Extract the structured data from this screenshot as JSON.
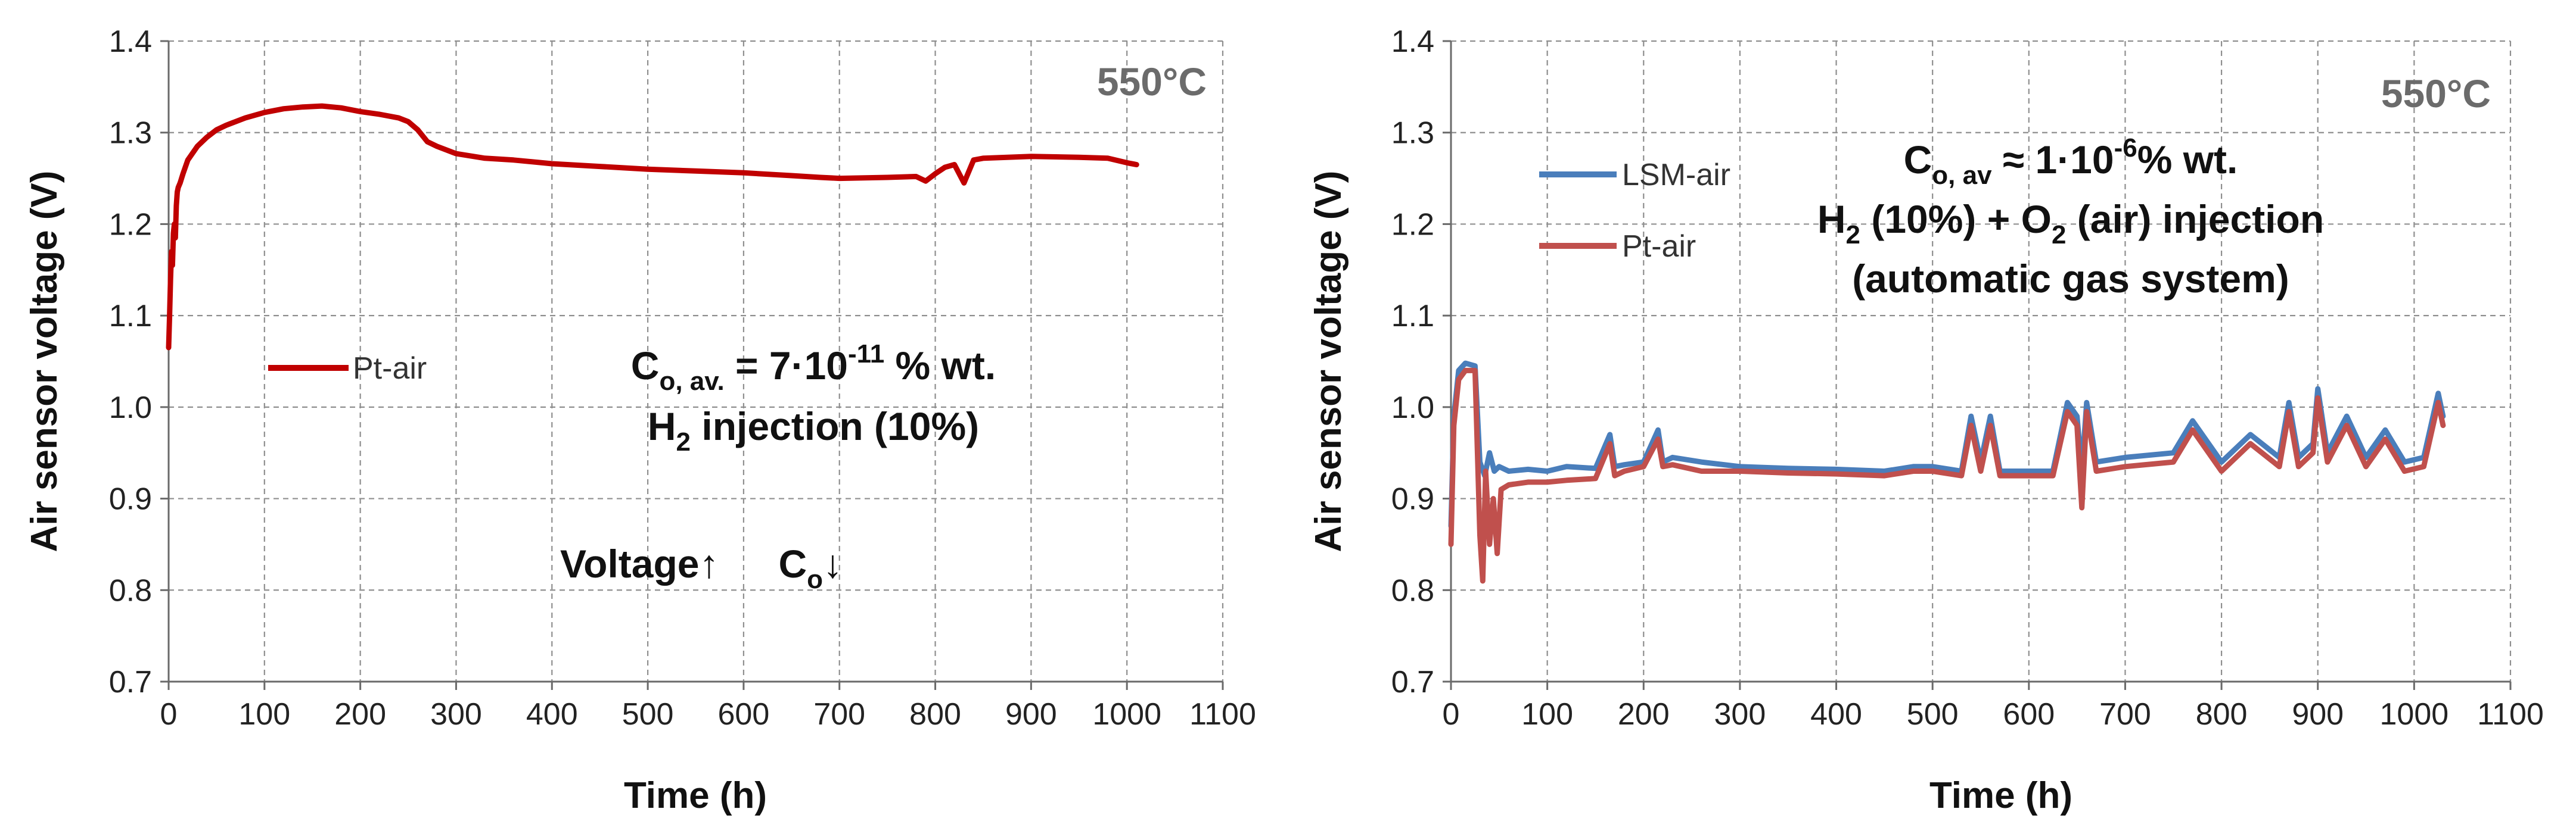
{
  "chart_data": [
    {
      "type": "line",
      "id": "left",
      "xlabel": "Time (h)",
      "ylabel": "Air sensor voltage (V)",
      "xlim": [
        0,
        1100
      ],
      "ylim": [
        0.7,
        1.4
      ],
      "xticks": [
        "0",
        "100",
        "200",
        "300",
        "400",
        "500",
        "600",
        "700",
        "800",
        "900",
        "1000",
        "1100"
      ],
      "yticks": [
        "0.7",
        "0.8",
        "0.9",
        "1.0",
        "1.1",
        "1.2",
        "1.3",
        "1.4"
      ],
      "grid": true,
      "temperature_label": "550°C",
      "legend": [
        "Pt-air"
      ],
      "annotations": {
        "conc_prefix": "C",
        "conc_sub": "o, av.",
        "conc_mid": " = 7·10",
        "conc_exp": "-11",
        "conc_suffix": " % wt.",
        "inj_prefix": "H",
        "inj_sub": "2",
        "inj_suffix": " injection (10%)",
        "trend_voltage": "Voltage↑",
        "trend_c": "C",
        "trend_c_sub": "o",
        "trend_arrow": "↓"
      },
      "series": [
        {
          "name": "Pt-air",
          "color": "#c00000",
          "x": [
            0,
            1,
            2,
            3,
            4,
            5,
            6,
            7,
            8,
            9,
            10,
            12,
            15,
            20,
            30,
            40,
            50,
            60,
            80,
            100,
            120,
            140,
            160,
            180,
            200,
            220,
            240,
            250,
            260,
            270,
            280,
            300,
            330,
            360,
            400,
            450,
            500,
            550,
            600,
            650,
            680,
            700,
            750,
            780,
            790,
            800,
            810,
            820,
            830,
            840,
            850,
            900,
            950,
            980,
            1000,
            1010
          ],
          "values": [
            1.065,
            1.1,
            1.14,
            1.17,
            1.155,
            1.19,
            1.2,
            1.185,
            1.22,
            1.235,
            1.24,
            1.245,
            1.255,
            1.27,
            1.285,
            1.295,
            1.303,
            1.308,
            1.316,
            1.322,
            1.326,
            1.328,
            1.329,
            1.327,
            1.323,
            1.32,
            1.316,
            1.312,
            1.303,
            1.29,
            1.285,
            1.277,
            1.272,
            1.27,
            1.266,
            1.263,
            1.26,
            1.258,
            1.256,
            1.253,
            1.251,
            1.25,
            1.251,
            1.252,
            1.247,
            1.255,
            1.262,
            1.265,
            1.245,
            1.27,
            1.272,
            1.274,
            1.273,
            1.272,
            1.267,
            1.265
          ]
        }
      ]
    },
    {
      "type": "line",
      "id": "right",
      "xlabel": "Time (h)",
      "ylabel": "Air sensor voltage (V)",
      "xlim": [
        0,
        1100
      ],
      "ylim": [
        0.7,
        1.4
      ],
      "xticks": [
        "0",
        "100",
        "200",
        "300",
        "400",
        "500",
        "600",
        "700",
        "800",
        "900",
        "1000",
        "1100"
      ],
      "yticks": [
        "0.7",
        "0.8",
        "0.9",
        "1.0",
        "1.1",
        "1.2",
        "1.3",
        "1.4"
      ],
      "grid": true,
      "temperature_label": "550°C",
      "legend": [
        "LSM-air",
        "Pt-air"
      ],
      "annotations": {
        "conc_prefix": "C",
        "conc_sub": "o, av",
        "conc_mid": " ≈ 1·10",
        "conc_exp": "-6",
        "conc_suffix": "% wt.",
        "inj_prefix": "H",
        "inj_sub": "2",
        "inj_mid": " (10%) + O",
        "inj_sub2": "2",
        "inj_suffix": " (air) injection",
        "system": "(automatic gas system)"
      },
      "series": [
        {
          "name": "LSM-air",
          "color": "#4a7ebb",
          "x": [
            0,
            3,
            8,
            15,
            25,
            30,
            35,
            40,
            45,
            50,
            60,
            80,
            100,
            120,
            150,
            165,
            170,
            180,
            200,
            215,
            220,
            230,
            260,
            300,
            350,
            400,
            450,
            480,
            500,
            530,
            540,
            550,
            560,
            570,
            600,
            625,
            640,
            650,
            655,
            660,
            670,
            700,
            750,
            770,
            800,
            830,
            860,
            870,
            880,
            895,
            900,
            910,
            930,
            950,
            970,
            990,
            1010,
            1025,
            1030
          ],
          "values": [
            0.87,
            0.99,
            1.04,
            1.048,
            1.045,
            0.94,
            0.925,
            0.95,
            0.93,
            0.935,
            0.93,
            0.932,
            0.93,
            0.935,
            0.933,
            0.97,
            0.935,
            0.937,
            0.94,
            0.975,
            0.94,
            0.945,
            0.94,
            0.935,
            0.933,
            0.932,
            0.93,
            0.935,
            0.935,
            0.93,
            0.99,
            0.94,
            0.99,
            0.93,
            0.93,
            0.93,
            1.005,
            0.99,
            0.93,
            1.005,
            0.94,
            0.945,
            0.95,
            0.985,
            0.94,
            0.97,
            0.945,
            1.005,
            0.945,
            0.96,
            1.02,
            0.95,
            0.99,
            0.945,
            0.975,
            0.94,
            0.945,
            1.015,
            0.99
          ]
        },
        {
          "name": "Pt-air",
          "color": "#c0504d",
          "x": [
            0,
            3,
            8,
            15,
            25,
            30,
            33,
            36,
            40,
            44,
            48,
            52,
            60,
            80,
            100,
            120,
            150,
            165,
            170,
            180,
            200,
            215,
            220,
            230,
            260,
            300,
            350,
            400,
            450,
            480,
            500,
            530,
            540,
            550,
            560,
            570,
            600,
            625,
            640,
            650,
            655,
            660,
            670,
            700,
            750,
            770,
            800,
            830,
            860,
            870,
            880,
            895,
            900,
            910,
            930,
            950,
            970,
            990,
            1010,
            1025,
            1030
          ],
          "values": [
            0.85,
            0.98,
            1.03,
            1.04,
            1.04,
            0.86,
            0.81,
            0.93,
            0.85,
            0.9,
            0.84,
            0.91,
            0.915,
            0.918,
            0.918,
            0.92,
            0.922,
            0.96,
            0.925,
            0.93,
            0.935,
            0.965,
            0.935,
            0.937,
            0.93,
            0.93,
            0.928,
            0.927,
            0.925,
            0.93,
            0.93,
            0.925,
            0.98,
            0.93,
            0.98,
            0.925,
            0.925,
            0.925,
            0.995,
            0.98,
            0.89,
            0.995,
            0.93,
            0.935,
            0.94,
            0.975,
            0.93,
            0.96,
            0.935,
            0.995,
            0.935,
            0.95,
            1.01,
            0.94,
            0.98,
            0.935,
            0.965,
            0.93,
            0.935,
            1.005,
            0.98
          ]
        }
      ]
    }
  ]
}
